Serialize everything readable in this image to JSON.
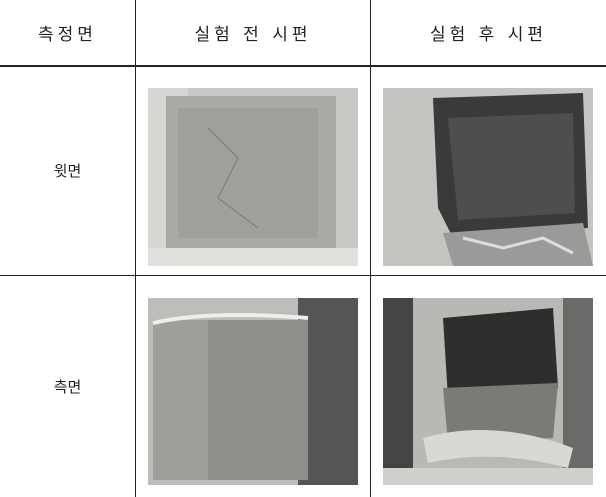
{
  "table": {
    "header": [
      "측정면",
      "실험 전 시편",
      "실험 후 시편"
    ],
    "rows": [
      {
        "label": "윗면"
      },
      {
        "label": "측면"
      }
    ]
  }
}
